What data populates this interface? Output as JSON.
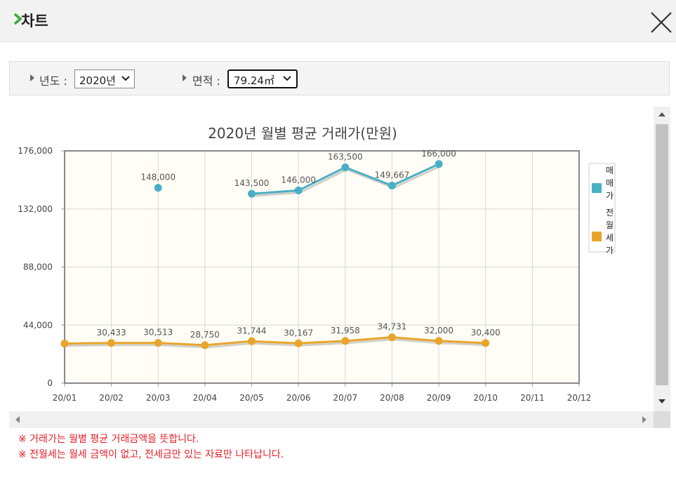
{
  "header": {
    "title": "차트",
    "close_icon": "close-x-icon",
    "chevron_icon": "chevron-right-icon",
    "accent_color": "#3ca83c"
  },
  "filters": {
    "year": {
      "label": "년도 :",
      "value": "2020년"
    },
    "area": {
      "label": "면적 :",
      "value": "79.24㎡"
    }
  },
  "notes": [
    "※ 거래가는 월별 평균 거래금액을 뜻합니다.",
    "※ 전월세는 월세 금액이 없고, 전세금만 있는 자료만 나타납니다."
  ],
  "chart_data": {
    "type": "line",
    "title": "2020년 월별 평균 거래가(만원)",
    "categories": [
      "20/01",
      "20/02",
      "20/03",
      "20/04",
      "20/05",
      "20/06",
      "20/07",
      "20/08",
      "20/09",
      "20/10",
      "20/11",
      "20/12"
    ],
    "ylim": [
      0,
      176000
    ],
    "y_ticks": [
      "0",
      "44,000",
      "88,000",
      "132,000",
      "176,000"
    ],
    "y_tick_values": [
      0,
      44000,
      88000,
      132000,
      176000
    ],
    "grid": true,
    "legend_position": "right",
    "plot_background": "#fffdf6",
    "series": [
      {
        "name": "매매가",
        "color": "#4aafc4",
        "values": [
          null,
          null,
          148000,
          null,
          143500,
          146000,
          163500,
          149667,
          166000,
          null,
          null,
          null
        ],
        "labels": [
          null,
          null,
          "148,000",
          null,
          "143,500",
          "146,000",
          "163,500",
          "149,667",
          "166,000",
          null,
          null,
          null
        ]
      },
      {
        "name": "전월세가",
        "color": "#e8a52c",
        "values": [
          30000,
          30433,
          30513,
          28750,
          31744,
          30167,
          31958,
          34731,
          32000,
          30400,
          null,
          null
        ],
        "labels": [
          null,
          "30,433",
          "30,513",
          "28,750",
          "31,744",
          "30,167",
          "31,958",
          "34,731",
          "32,000",
          "30,400",
          null,
          null
        ]
      }
    ]
  }
}
